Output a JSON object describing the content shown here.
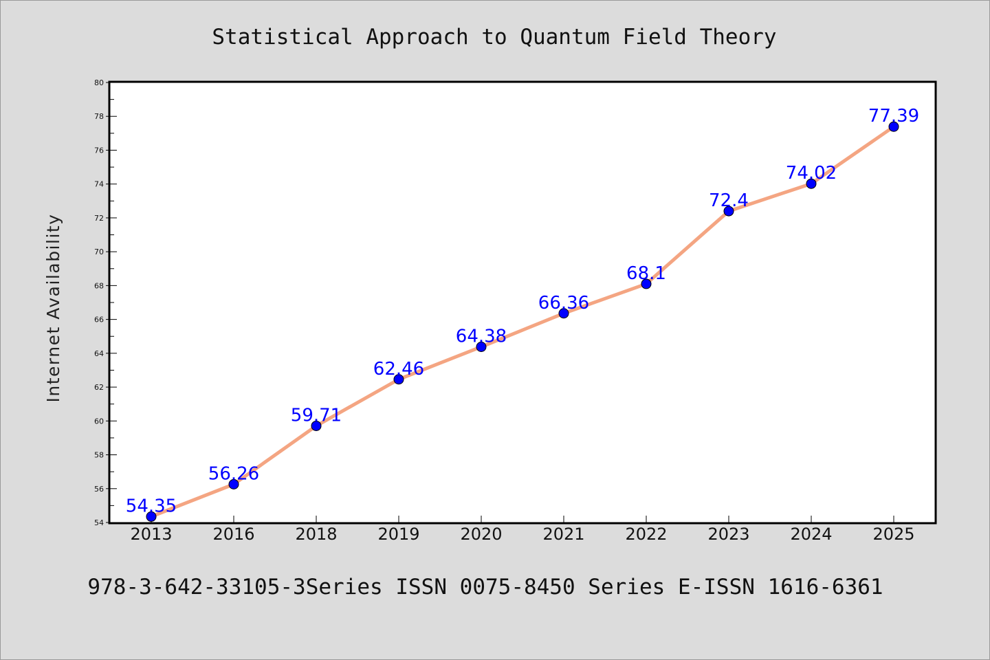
{
  "chart_data": {
    "type": "line",
    "title": "Statistical Approach to Quantum Field Theory",
    "ylabel": "Internet Availability",
    "xlabel": "",
    "footer": "978-3-642-33105-3Series ISSN 0075-8450 Series E-ISSN 1616-6361",
    "categories": [
      "2013",
      "2016",
      "2018",
      "2019",
      "2020",
      "2021",
      "2022",
      "2023",
      "2024",
      "2025"
    ],
    "series": [
      {
        "values": [
          54.35,
          56.26,
          59.71,
          62.46,
          64.38,
          66.36,
          68.1,
          72.4,
          74.02,
          77.39
        ],
        "data_labels": [
          "54.35",
          "56.26",
          "59.71",
          "62.46",
          "64.38",
          "66.36",
          "68.1",
          "72.4",
          "74.02",
          "77.39"
        ]
      }
    ],
    "ylim": [
      54,
      80
    ],
    "yticks": [
      "54",
      "56",
      "58",
      "60",
      "62",
      "64",
      "66",
      "68",
      "70",
      "72",
      "74",
      "76",
      "78",
      "80"
    ],
    "grid": false,
    "colors": {
      "line": "#f4a582",
      "marker": "#0000ff",
      "data_label": "#0000ff",
      "background": "#dcdcdc",
      "plot_area": "#ffffff"
    }
  }
}
